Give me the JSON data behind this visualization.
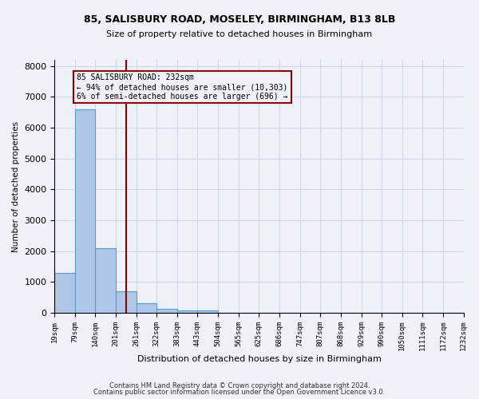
{
  "title1": "85, SALISBURY ROAD, MOSELEY, BIRMINGHAM, B13 8LB",
  "title2": "Size of property relative to detached houses in Birmingham",
  "xlabel": "Distribution of detached houses by size in Birmingham",
  "ylabel": "Number of detached properties",
  "property_size": 232,
  "bin_edges": [
    19,
    79,
    140,
    201,
    261,
    322,
    383,
    443,
    504,
    565,
    625,
    686,
    747,
    807,
    868,
    929,
    990,
    1050,
    1111,
    1172,
    1232
  ],
  "bar_heights": [
    1300,
    6600,
    2100,
    700,
    300,
    120,
    70,
    70,
    0,
    0,
    0,
    0,
    0,
    0,
    0,
    0,
    0,
    0,
    0,
    0
  ],
  "bar_color": "#aec6e8",
  "bar_edge_color": "#5b9bd5",
  "grid_color": "#d0d8e8",
  "bg_color": "#eef2f8",
  "vline_color": "#8b0000",
  "annotation_box_color": "#8b0000",
  "annotation_line1": "85 SALISBURY ROAD: 232sqm",
  "annotation_line2": "← 94% of detached houses are smaller (10,303)",
  "annotation_line3": "6% of semi-detached houses are larger (696) →",
  "footnote1": "Contains HM Land Registry data © Crown copyright and database right 2024.",
  "footnote2": "Contains public sector information licensed under the Open Government Licence v3.0.",
  "ylim": [
    0,
    8200
  ],
  "yticks": [
    0,
    1000,
    2000,
    3000,
    4000,
    5000,
    6000,
    7000,
    8000
  ]
}
